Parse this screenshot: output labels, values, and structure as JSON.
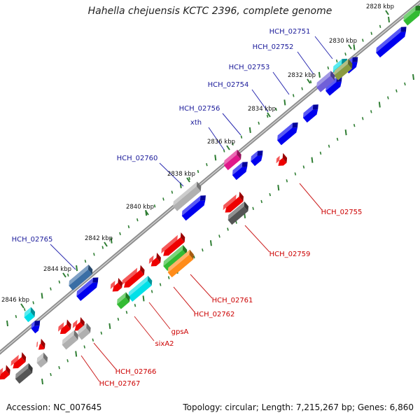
{
  "title": "Hahella chejuensis KCTC 2396, complete genome",
  "footer": {
    "accession": "Accession: NC_007645",
    "topology": "Topology: circular; Length: 7,215,267 bp; Genes: 6,860"
  },
  "colors": {
    "backbone": "#8c8c8c",
    "ticks": "#2e7d32",
    "upper_labels": "#1a1a9a",
    "lower_labels": "#cc0000",
    "gene_blue": "#0000ee",
    "gene_red": "#ee0000",
    "gene_green": "#33bb33",
    "gene_cyan": "#00e0e8",
    "gene_grey": "#b0b0b0",
    "gene_darkgrey": "#555555",
    "gene_magenta": "#e0188a",
    "gene_steelblue": "#3a6ea5",
    "gene_slateblue": "#7060d8",
    "gene_olive": "#8a9a40",
    "gene_orange": "#ff8c1a"
  },
  "kbp_marks": [
    "2828 kbp",
    "2830 kbp",
    "2832 kbp",
    "2834 kbp",
    "2836 kbp",
    "2838 kbp",
    "2840 kbp",
    "2842 kbp",
    "2844 kbp",
    "2846 kbp"
  ],
  "genes_forward": [
    {
      "label": "HCH_02751",
      "color": "olive"
    },
    {
      "label": "HCH_02752",
      "color": "slateblue"
    },
    {
      "label": "HCH_02753",
      "color": "blue"
    },
    {
      "label": "HCH_02754",
      "color": "blue"
    },
    {
      "label": "HCH_02756",
      "color": "blue"
    },
    {
      "label": "xth",
      "color": "magenta"
    },
    {
      "label": "HCH_02760",
      "color": "grey"
    },
    {
      "label": "HCH_02765",
      "color": "steelblue"
    }
  ],
  "genes_reverse": [
    {
      "label": "HCH_02755",
      "color": "red"
    },
    {
      "label": "HCH_02759",
      "color": "darkgrey"
    },
    {
      "label": "HCH_02761",
      "color": "orange"
    },
    {
      "label": "HCH_02762",
      "color": "green"
    },
    {
      "label": "gpsA",
      "color": "cyan"
    },
    {
      "label": "sixA2",
      "color": "green"
    },
    {
      "label": "HCH_02766",
      "color": "grey"
    },
    {
      "label": "HCH_02767",
      "color": "grey"
    }
  ]
}
